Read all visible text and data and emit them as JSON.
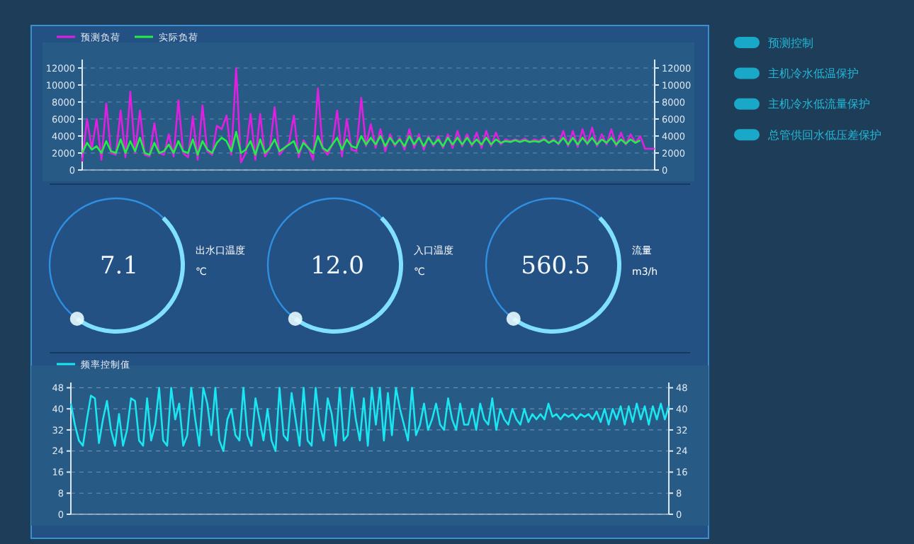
{
  "chart_data": [
    {
      "type": "line",
      "legend": "top left",
      "grid": "y",
      "marker": "none",
      "line_style": "solid",
      "tick_labels": "y",
      "categories": [
        null,
        null,
        null,
        null,
        null,
        null,
        null,
        null,
        null,
        null,
        null,
        null,
        null,
        null,
        null,
        null,
        null,
        null,
        null,
        null,
        null,
        null,
        null,
        null,
        null,
        null,
        null,
        null,
        null,
        null,
        null,
        null,
        null,
        null,
        null,
        null,
        null,
        null,
        null,
        null,
        null,
        null,
        null,
        null,
        null,
        null,
        null,
        null,
        null,
        null,
        null,
        null,
        null,
        null,
        null,
        null,
        null,
        null,
        null,
        null,
        null,
        null,
        null,
        null,
        null,
        null,
        null,
        null,
        null,
        null,
        null,
        null,
        null,
        null,
        null,
        null,
        null,
        null,
        null,
        null,
        null,
        null,
        null,
        null,
        null,
        null,
        null,
        null,
        null,
        null,
        null,
        null,
        null,
        null,
        null,
        null,
        null,
        null,
        null,
        null,
        null,
        null,
        null,
        null,
        null,
        null,
        null,
        null,
        null,
        null,
        null,
        null,
        null,
        null,
        null,
        null,
        null,
        null,
        null,
        null
      ],
      "ylim": [
        0,
        13000
      ],
      "yticks": [
        0,
        2000,
        4000,
        6000,
        8000,
        10000,
        12000
      ],
      "y2lim": [
        0,
        13000
      ],
      "y2ticks": [
        0,
        2000,
        4000,
        6000,
        8000,
        10000,
        12000
      ],
      "series": [
        {
          "name": "预测负荷",
          "color": "#e020e0",
          "values": [
            1000,
            6000,
            2500,
            6000,
            1200,
            7800,
            2000,
            1800,
            7000,
            1500,
            9200,
            2000,
            7000,
            1800,
            1600,
            5500,
            2000,
            1800,
            4200,
            1600,
            8200,
            2000,
            1500,
            6300,
            1200,
            7600,
            2200,
            1800,
            5200,
            4800,
            6400,
            1800,
            12000,
            900,
            2000,
            6600,
            1200,
            6600,
            1600,
            2500,
            7400,
            1800,
            2500,
            3200,
            6400,
            1500,
            3500,
            2600,
            1200,
            9600,
            2500,
            1800,
            3000,
            7000,
            1600,
            6000,
            2400,
            2200,
            8500,
            2800,
            5400,
            2600,
            4800,
            2200,
            4200,
            2800,
            3800,
            2400,
            4800,
            2600,
            4200,
            2400,
            4000,
            2800,
            4000,
            2600,
            4200,
            2600,
            4600,
            2800,
            4200,
            2800,
            4400,
            2600,
            4600,
            2800,
            4400,
            3000,
            3600,
            3400,
            3600,
            3400,
            3700,
            3300,
            3600,
            3400,
            3800,
            3200,
            3700,
            3000,
            4600,
            2800,
            4600,
            2700,
            4800,
            3000,
            5000,
            2800,
            4200,
            3000,
            4800,
            2800,
            4400,
            3000,
            4200,
            3200,
            4000,
            2500,
            2500,
            2500
          ]
        },
        {
          "name": "实际负荷",
          "color": "#22ee44",
          "values": [
            2000,
            3200,
            2400,
            2800,
            2000,
            3400,
            2200,
            2000,
            3600,
            2000,
            3400,
            2200,
            3800,
            2000,
            1800,
            3200,
            2000,
            2200,
            3000,
            2000,
            3400,
            2200,
            2000,
            3600,
            1800,
            3400,
            2400,
            2000,
            3200,
            3800,
            3400,
            2200,
            4500,
            2000,
            2400,
            3400,
            1800,
            3600,
            2000,
            2600,
            3600,
            2200,
            2600,
            3000,
            3400,
            2000,
            3200,
            2600,
            2000,
            4000,
            2600,
            2200,
            3000,
            3800,
            2400,
            3600,
            2800,
            2600,
            4000,
            3000,
            3800,
            3000,
            4000,
            2800,
            3800,
            3000,
            3600,
            2800,
            4000,
            3000,
            3800,
            2800,
            3800,
            3000,
            3600,
            2800,
            3800,
            3000,
            3800,
            3000,
            3800,
            3000,
            3600,
            3000,
            3800,
            3000,
            3600,
            3200,
            3400,
            3300,
            3500,
            3300,
            3500,
            3300,
            3400,
            3300,
            3600,
            3200,
            3500,
            3100,
            3800,
            3000,
            3800,
            3000,
            3800,
            3100,
            3800,
            3000,
            3600,
            3200,
            3800,
            3000,
            3600,
            3100,
            3600,
            3200,
            3500,
            null,
            null,
            null
          ]
        }
      ]
    },
    {
      "type": "other",
      "categories": [
        "出水口温度",
        "入口温度",
        "流量"
      ],
      "value_labels": [
        "7.1",
        "12.0",
        "560.5"
      ],
      "annotations": [
        "℃",
        "℃",
        "m3/h"
      ]
    },
    {
      "type": "line",
      "legend": "top left",
      "grid": "y",
      "marker": "none",
      "line_style": "solid",
      "tick_labels": "y",
      "categories": [
        null,
        null,
        null,
        null,
        null,
        null,
        null,
        null,
        null,
        null,
        null,
        null,
        null,
        null,
        null,
        null,
        null,
        null,
        null,
        null,
        null,
        null,
        null,
        null,
        null,
        null,
        null,
        null,
        null,
        null,
        null,
        null,
        null,
        null,
        null,
        null,
        null,
        null,
        null,
        null,
        null,
        null,
        null,
        null,
        null,
        null,
        null,
        null,
        null,
        null,
        null,
        null,
        null,
        null,
        null,
        null,
        null,
        null,
        null,
        null,
        null,
        null,
        null,
        null,
        null,
        null,
        null,
        null,
        null,
        null,
        null,
        null,
        null,
        null,
        null,
        null,
        null,
        null,
        null,
        null,
        null,
        null,
        null,
        null,
        null,
        null,
        null,
        null,
        null,
        null,
        null,
        null,
        null,
        null,
        null,
        null,
        null,
        null,
        null,
        null,
        null,
        null,
        null,
        null,
        null,
        null,
        null,
        null,
        null,
        null,
        null,
        null,
        null,
        null,
        null,
        null,
        null,
        null,
        null,
        null,
        null,
        null,
        null,
        null,
        null,
        null,
        null,
        null,
        null,
        null,
        null,
        null,
        null,
        null,
        null,
        null,
        null,
        null,
        null,
        null,
        null,
        null,
        null,
        null,
        null,
        null,
        null,
        null,
        null,
        null
      ],
      "ylim": [
        0,
        50
      ],
      "yticks": [
        0,
        8,
        16,
        24,
        32,
        40,
        48
      ],
      "y2lim": [
        0,
        50
      ],
      "y2ticks": [
        0,
        8,
        16,
        24,
        32,
        40,
        48
      ],
      "series": [
        {
          "name": "频率控制值",
          "color": "#19e6f0",
          "values": [
            42,
            34,
            28,
            26,
            36,
            45,
            44,
            27,
            36,
            43,
            32,
            26,
            38,
            26,
            32,
            44,
            43,
            28,
            26,
            44,
            28,
            34,
            48,
            28,
            26,
            48,
            36,
            42,
            26,
            30,
            48,
            36,
            26,
            48,
            42,
            30,
            48,
            28,
            24,
            36,
            40,
            30,
            28,
            48,
            30,
            26,
            44,
            36,
            28,
            40,
            28,
            24,
            48,
            30,
            28,
            46,
            36,
            26,
            48,
            28,
            26,
            48,
            34,
            28,
            44,
            38,
            26,
            48,
            28,
            30,
            48,
            36,
            28,
            44,
            26,
            48,
            34,
            48,
            28,
            46,
            30,
            48,
            40,
            34,
            28,
            48,
            30,
            34,
            42,
            32,
            36,
            42,
            34,
            32,
            44,
            36,
            32,
            42,
            34,
            34,
            40,
            32,
            42,
            36,
            34,
            44,
            32,
            40,
            36,
            34,
            40,
            36,
            34,
            40,
            35,
            38,
            36,
            38,
            36,
            42,
            37,
            38,
            36,
            38,
            37,
            38,
            36,
            38,
            37,
            38,
            36,
            39,
            35,
            40,
            34,
            40,
            36,
            41,
            34,
            41,
            35,
            42,
            36,
            41,
            34,
            41,
            36,
            42,
            36,
            41
          ]
        }
      ]
    },
    {
      "type": "other",
      "categories": [
        "预测控制",
        "主机冷水低温保护",
        "主机冷水低流量保护",
        "总管供回水低压差保护"
      ]
    }
  ]
}
